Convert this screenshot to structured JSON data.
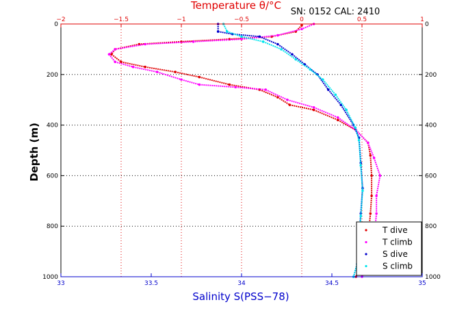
{
  "chart_data": {
    "type": "scatter",
    "title": "",
    "annotation": "SN: 0152  CAL: 2410",
    "ylabel": "Depth (m)",
    "xlabel_bottom": "Salinity S(PSS−78)",
    "xlabel_top": "Temperature θ/°C",
    "ylim": [
      1000,
      0
    ],
    "xlim_bottom": [
      33,
      35
    ],
    "xlim_top": [
      -2,
      1
    ],
    "y_ticks": [
      "0",
      "200",
      "400",
      "600",
      "800",
      "1000"
    ],
    "bottom_ticks": [
      "33",
      "33.5",
      "34",
      "34.5",
      "35"
    ],
    "top_ticks": [
      "−2",
      "−1.5",
      "−1",
      "−0.5",
      "0",
      "0.5",
      "1"
    ],
    "grid": true,
    "legend_position": "bottom-right",
    "colors": {
      "t_dive": "#e00000",
      "t_climb": "#ff00ff",
      "s_dive": "#0000cc",
      "s_climb": "#00e5ee",
      "salinity_axis": "#0000cc",
      "temperature_axis": "#e00000"
    },
    "series": [
      {
        "name": "T dive",
        "axis": "top",
        "color": "#e00000",
        "x": [
          0.0,
          -0.05,
          -0.25,
          -0.6,
          -1.0,
          -1.35,
          -1.55,
          -1.58,
          -1.5,
          -1.3,
          -1.05,
          -0.85,
          -0.6,
          -0.35,
          -0.2,
          -0.1,
          0.1,
          0.3,
          0.45,
          0.55,
          0.57,
          0.58,
          0.58,
          0.57,
          0.55,
          0.5,
          0.45
        ],
        "y": [
          5,
          30,
          50,
          60,
          70,
          80,
          100,
          120,
          150,
          170,
          190,
          210,
          240,
          260,
          290,
          320,
          340,
          380,
          420,
          470,
          520,
          600,
          680,
          750,
          850,
          950,
          1000
        ]
      },
      {
        "name": "T climb",
        "axis": "top",
        "color": "#ff00ff",
        "x": [
          0.1,
          0.0,
          -0.2,
          -0.5,
          -0.9,
          -1.3,
          -1.55,
          -1.6,
          -1.55,
          -1.4,
          -1.2,
          -1.0,
          -0.85,
          -0.55,
          -0.3,
          -0.12,
          0.1,
          0.3,
          0.45,
          0.55,
          0.6,
          0.65,
          0.62,
          0.62,
          0.6,
          0.55,
          0.5
        ],
        "y": [
          0,
          20,
          45,
          60,
          70,
          80,
          100,
          120,
          150,
          170,
          190,
          220,
          240,
          250,
          260,
          300,
          330,
          370,
          420,
          470,
          530,
          600,
          680,
          750,
          850,
          950,
          1000
        ]
      },
      {
        "name": "S dive",
        "axis": "bottom",
        "color": "#0000cc",
        "x": [
          33.87,
          33.87,
          33.95,
          34.1,
          34.2,
          34.28,
          34.35,
          34.42,
          34.48,
          34.55,
          34.62,
          34.65,
          34.66,
          34.67,
          34.66,
          34.65,
          34.64,
          34.62
        ],
        "y": [
          0,
          30,
          40,
          50,
          80,
          120,
          160,
          200,
          260,
          320,
          400,
          450,
          550,
          650,
          750,
          850,
          950,
          1000
        ]
      },
      {
        "name": "S climb",
        "axis": "bottom",
        "color": "#00e5ee",
        "x": [
          33.9,
          33.92,
          34.0,
          34.12,
          34.22,
          34.3,
          34.38,
          34.45,
          34.52,
          34.58,
          34.63,
          34.65,
          34.66,
          34.67,
          34.66,
          34.65,
          34.64,
          34.62
        ],
        "y": [
          0,
          30,
          50,
          70,
          100,
          140,
          180,
          220,
          280,
          340,
          410,
          460,
          560,
          660,
          760,
          860,
          950,
          1000
        ]
      }
    ]
  }
}
